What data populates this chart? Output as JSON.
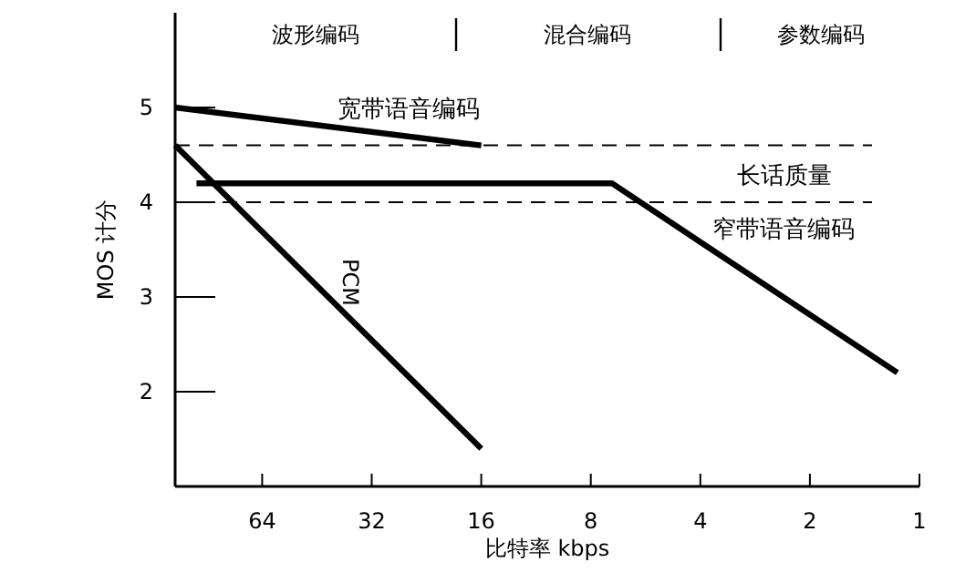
{
  "chart_data": {
    "type": "line",
    "xlabel": "比特率 kbps",
    "ylabel": "MOS 计分",
    "log": "x",
    "xlim": [
      111,
      1
    ],
    "xticks": [
      64,
      32,
      16,
      8,
      4,
      2,
      1
    ],
    "ylim": [
      1,
      6
    ],
    "yticks": [
      2,
      3,
      4,
      5
    ],
    "grid": false,
    "marker": "none",
    "line_style": "solid",
    "series": [
      {
        "name": "宽带语音编码",
        "color": "#000000",
        "x": [
          111,
          16
        ],
        "values": [
          5.0,
          4.6
        ]
      },
      {
        "name": "PCM",
        "color": "#000000",
        "x": [
          111,
          16
        ],
        "values": [
          4.6,
          1.4
        ]
      },
      {
        "name": "窄带语音编码",
        "color": "#000000",
        "x": [
          97,
          7,
          1.15
        ],
        "values": [
          4.2,
          4.2,
          2.2
        ]
      }
    ],
    "ref_lines": [
      {
        "axis": "y",
        "value": 4.6,
        "line_style": "dashed",
        "color": "#000000"
      },
      {
        "axis": "y",
        "value": 4.0,
        "line_style": "dashed",
        "color": "#000000"
      }
    ],
    "annotations": [
      "波形编码",
      "混合编码",
      "参数编码",
      "长话质量"
    ]
  }
}
